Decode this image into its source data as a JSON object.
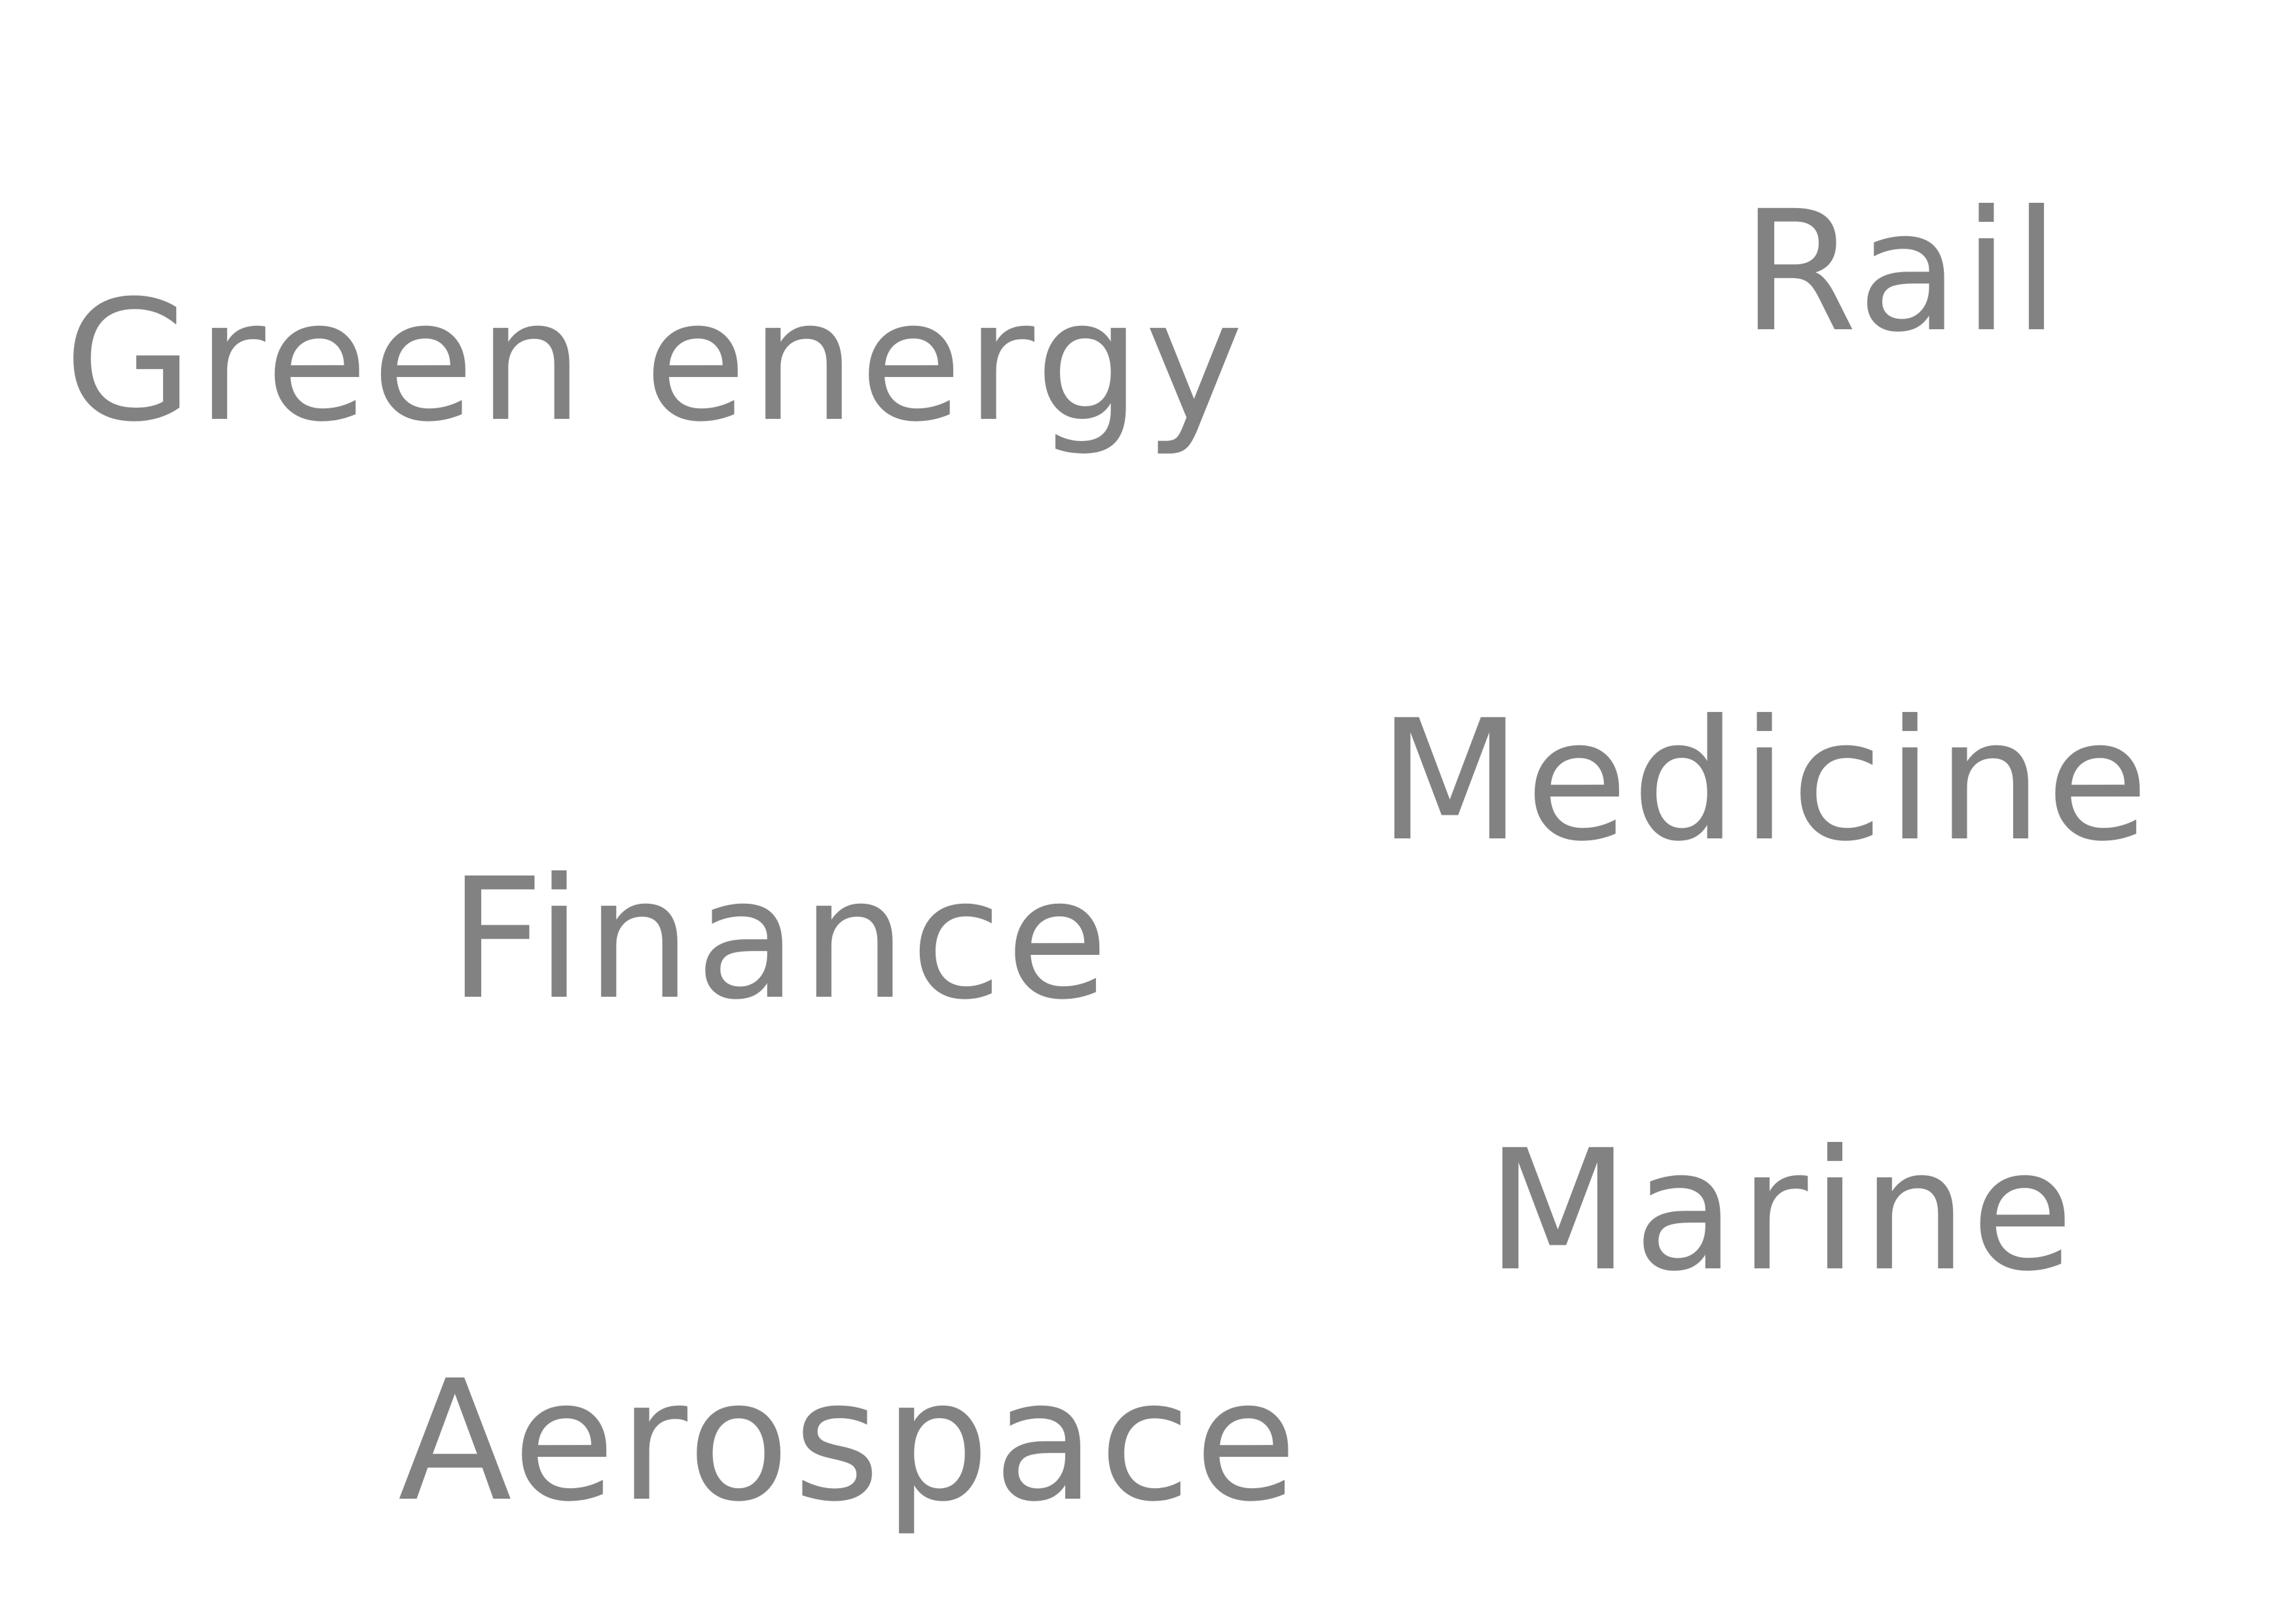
{
  "words": {
    "green_energy": "Green energy",
    "rail": "Rail",
    "medicine": "Medicine",
    "finance": "Finance",
    "marine": "Marine",
    "aerospace": "Aerospace"
  },
  "colors": {
    "text": "#828282",
    "background": "#ffffff"
  }
}
